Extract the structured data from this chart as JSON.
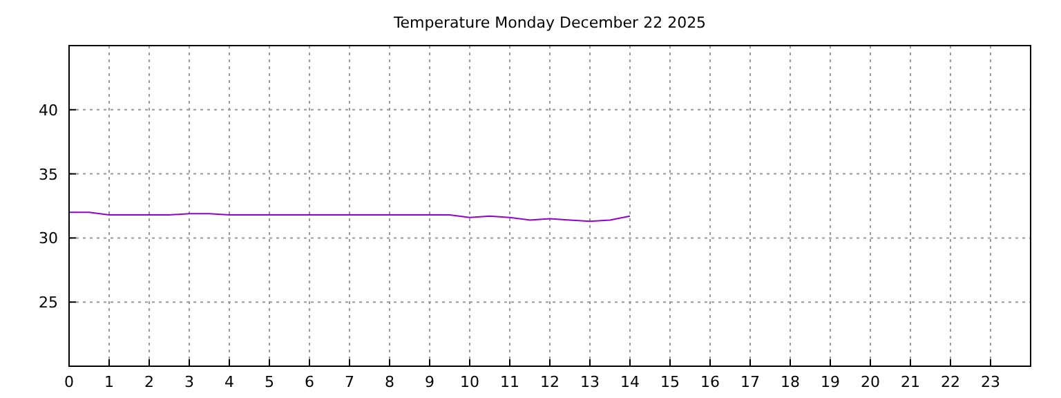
{
  "chart_data": {
    "type": "line",
    "title": "Temperature Monday December 22 2025",
    "x": [
      0,
      0.5,
      1,
      1.5,
      2,
      2.5,
      3,
      3.5,
      4,
      4.5,
      5,
      5.5,
      6,
      6.5,
      7,
      7.5,
      8,
      8.5,
      9,
      9.5,
      10,
      10.5,
      11,
      11.5,
      12,
      12.5,
      13,
      13.5,
      14
    ],
    "series": [
      {
        "color": "#9400d3",
        "values": [
          32.0,
          32.0,
          31.8,
          31.8,
          31.8,
          31.8,
          31.9,
          31.9,
          31.8,
          31.8,
          31.8,
          31.8,
          31.8,
          31.8,
          31.8,
          31.8,
          31.8,
          31.8,
          31.8,
          31.8,
          31.6,
          31.7,
          31.6,
          31.4,
          31.5,
          31.4,
          31.3,
          31.4,
          31.7
        ]
      }
    ],
    "xlim": [
      0,
      24
    ],
    "xticks": [
      0,
      1,
      2,
      3,
      4,
      5,
      6,
      7,
      8,
      9,
      10,
      11,
      12,
      13,
      14,
      15,
      16,
      17,
      18,
      19,
      20,
      21,
      22,
      23
    ],
    "ylim": [
      20,
      45
    ],
    "yticks": [
      25,
      30,
      35,
      40
    ],
    "grid": true,
    "marker": "none",
    "line_style": "solid"
  }
}
